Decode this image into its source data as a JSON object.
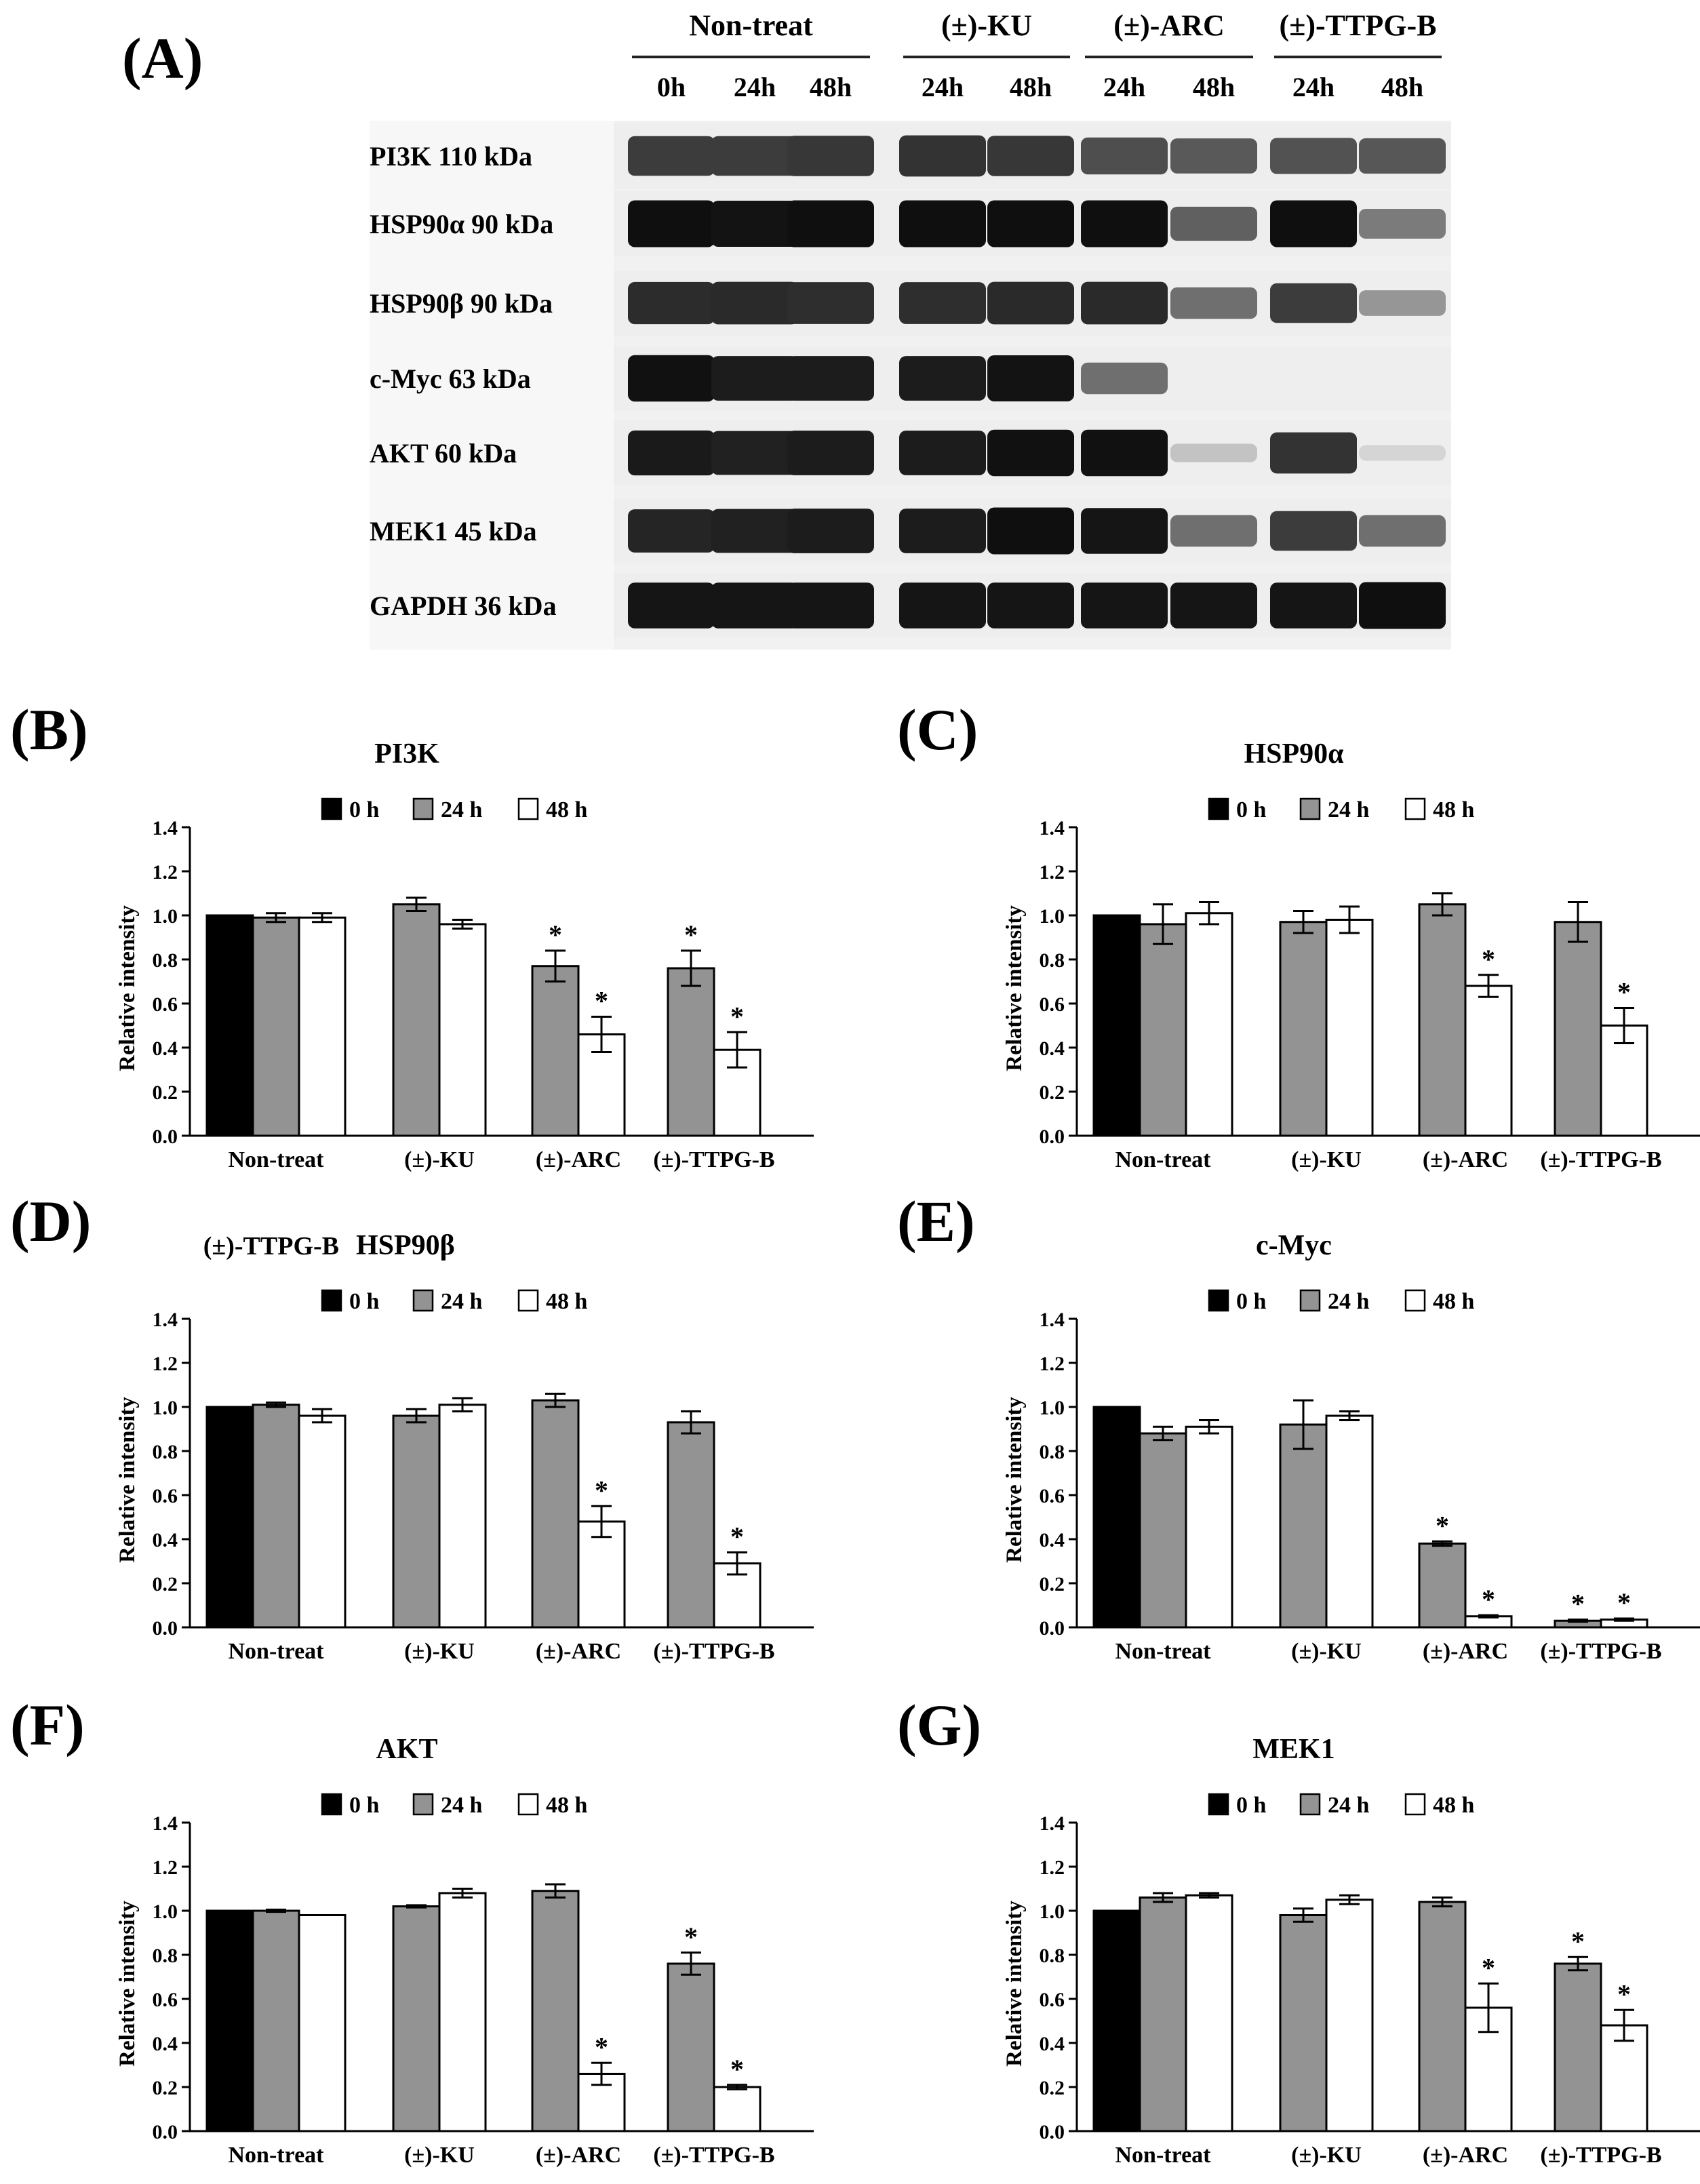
{
  "panel_a": {
    "label": "(A)",
    "groups": [
      {
        "name": "Non-treat",
        "times": [
          "0h",
          "24h",
          "48h"
        ]
      },
      {
        "name": "(±)-KU",
        "times": [
          "24h",
          "48h"
        ]
      },
      {
        "name": "(±)-ARC",
        "times": [
          "24h",
          "48h"
        ]
      },
      {
        "name": "(±)-TTPG-B",
        "times": [
          "24h",
          "48h"
        ]
      }
    ],
    "rows": [
      {
        "label": "PI3K 110 kDa",
        "intensity": [
          0.78,
          0.78,
          0.8,
          0.82,
          0.8,
          0.7,
          0.65,
          0.68,
          0.66
        ]
      },
      {
        "label": "HSP90α 90 kDa",
        "intensity": [
          0.98,
          0.96,
          0.98,
          0.98,
          0.98,
          0.98,
          0.62,
          0.98,
          0.5
        ]
      },
      {
        "label": "HSP90β 90 kDa",
        "intensity": [
          0.85,
          0.86,
          0.84,
          0.84,
          0.86,
          0.86,
          0.55,
          0.78,
          0.38
        ]
      },
      {
        "label": "c-Myc 63 kDa",
        "intensity": [
          0.97,
          0.92,
          0.92,
          0.92,
          0.96,
          0.55,
          0.0,
          0.0,
          0.0
        ]
      },
      {
        "label": "AKT 60 kDa",
        "intensity": [
          0.93,
          0.9,
          0.92,
          0.92,
          0.97,
          0.97,
          0.18,
          0.82,
          0.1
        ]
      },
      {
        "label": "MEK1 45 kDa",
        "intensity": [
          0.88,
          0.9,
          0.92,
          0.92,
          0.98,
          0.95,
          0.55,
          0.78,
          0.55
        ]
      },
      {
        "label": "GAPDH 36 kDa",
        "intensity": [
          0.95,
          0.95,
          0.95,
          0.95,
          0.95,
          0.95,
          0.95,
          0.95,
          0.98
        ]
      }
    ]
  },
  "colors": {
    "0h": "#000000",
    "24h": "#939393",
    "48h": "#ffffff"
  },
  "chart_data": [
    {
      "panel": "(B)",
      "type": "bar",
      "title": "PI3K",
      "ylabel": "Relative intensity",
      "ylim": [
        0,
        1.4
      ],
      "yticks": [
        "0.0",
        "0.2",
        "0.4",
        "0.6",
        "0.8",
        "1.0",
        "1.2",
        "1.4"
      ],
      "categories": [
        "Non-treat",
        "(±)-KU",
        "(±)-ARC",
        "(±)-TTPG-B"
      ],
      "series": [
        {
          "name": "0 h",
          "values": [
            1.0,
            null,
            null,
            null
          ],
          "errors": [
            0,
            null,
            null,
            null
          ]
        },
        {
          "name": "24 h",
          "values": [
            0.99,
            1.05,
            0.77,
            0.76
          ],
          "errors": [
            0.02,
            0.03,
            0.07,
            0.08
          ]
        },
        {
          "name": "48 h",
          "values": [
            0.99,
            0.96,
            0.46,
            0.39
          ],
          "errors": [
            0.02,
            0.02,
            0.08,
            0.08
          ]
        }
      ],
      "significance": {
        "24 h": [
          false,
          false,
          true,
          true
        ],
        "48 h": [
          false,
          false,
          true,
          true
        ]
      }
    },
    {
      "panel": "(C)",
      "type": "bar",
      "title": "HSP90α",
      "ylabel": "Relative intensity",
      "ylim": [
        0,
        1.4
      ],
      "yticks": [
        "0.0",
        "0.2",
        "0.4",
        "0.6",
        "0.8",
        "1.0",
        "1.2",
        "1.4"
      ],
      "categories": [
        "Non-treat",
        "(±)-KU",
        "(±)-ARC",
        "(±)-TTPG-B"
      ],
      "series": [
        {
          "name": "0 h",
          "values": [
            1.0,
            null,
            null,
            null
          ],
          "errors": [
            0,
            null,
            null,
            null
          ]
        },
        {
          "name": "24 h",
          "values": [
            0.96,
            0.97,
            1.05,
            0.97
          ],
          "errors": [
            0.09,
            0.05,
            0.05,
            0.09
          ]
        },
        {
          "name": "48 h",
          "values": [
            1.01,
            0.98,
            0.68,
            0.5
          ],
          "errors": [
            0.05,
            0.06,
            0.05,
            0.08
          ]
        }
      ],
      "significance": {
        "24 h": [
          false,
          false,
          false,
          false
        ],
        "48 h": [
          false,
          false,
          true,
          true
        ]
      }
    },
    {
      "panel": "(D)",
      "type": "bar",
      "title": "HSP90β",
      "title_prefix": "(±)-TTPG-B",
      "ylabel": "Relative intensity",
      "ylim": [
        0,
        1.4
      ],
      "yticks": [
        "0.0",
        "0.2",
        "0.4",
        "0.6",
        "0.8",
        "1.0",
        "1.2",
        "1.4"
      ],
      "categories": [
        "Non-treat",
        "(±)-KU",
        "(±)-ARC",
        "(±)-TTPG-B"
      ],
      "series": [
        {
          "name": "0 h",
          "values": [
            1.0,
            null,
            null,
            null
          ],
          "errors": [
            0,
            null,
            null,
            null
          ]
        },
        {
          "name": "24 h",
          "values": [
            1.01,
            0.96,
            1.03,
            0.93
          ],
          "errors": [
            0.01,
            0.03,
            0.03,
            0.05
          ]
        },
        {
          "name": "48 h",
          "values": [
            0.96,
            1.01,
            0.48,
            0.29
          ],
          "errors": [
            0.03,
            0.03,
            0.07,
            0.05
          ]
        }
      ],
      "significance": {
        "24 h": [
          false,
          false,
          false,
          false
        ],
        "48 h": [
          false,
          false,
          true,
          true
        ]
      }
    },
    {
      "panel": "(E)",
      "type": "bar",
      "title": "c-Myc",
      "ylabel": "Relative intensity",
      "ylim": [
        0,
        1.4
      ],
      "yticks": [
        "0.0",
        "0.2",
        "0.4",
        "0.6",
        "0.8",
        "1.0",
        "1.2",
        "1.4"
      ],
      "categories": [
        "Non-treat",
        "(±)-KU",
        "(±)-ARC",
        "(±)-TTPG-B"
      ],
      "series": [
        {
          "name": "0 h",
          "values": [
            1.0,
            null,
            null,
            null
          ],
          "errors": [
            0,
            null,
            null,
            null
          ]
        },
        {
          "name": "24 h",
          "values": [
            0.88,
            0.92,
            0.38,
            0.03
          ],
          "errors": [
            0.03,
            0.11,
            0.01,
            0.005
          ]
        },
        {
          "name": "48 h",
          "values": [
            0.91,
            0.96,
            0.05,
            0.035
          ],
          "errors": [
            0.03,
            0.02,
            0.005,
            0.005
          ]
        }
      ],
      "significance": {
        "24 h": [
          false,
          false,
          true,
          true
        ],
        "48 h": [
          false,
          false,
          true,
          true
        ]
      }
    },
    {
      "panel": "(F)",
      "type": "bar",
      "title": "AKT",
      "ylabel": "Relative intensity",
      "ylim": [
        0,
        1.4
      ],
      "yticks": [
        "0.0",
        "0.2",
        "0.4",
        "0.6",
        "0.8",
        "1.0",
        "1.2",
        "1.4"
      ],
      "categories": [
        "Non-treat",
        "(±)-KU",
        "(±)-ARC",
        "(±)-TTPG-B"
      ],
      "series": [
        {
          "name": "0 h",
          "values": [
            1.0,
            null,
            null,
            null
          ],
          "errors": [
            0,
            null,
            null,
            null
          ]
        },
        {
          "name": "24 h",
          "values": [
            1.0,
            1.02,
            1.09,
            0.76
          ],
          "errors": [
            0.005,
            0.005,
            0.03,
            0.05
          ]
        },
        {
          "name": "48 h",
          "values": [
            0.98,
            1.08,
            0.26,
            0.2
          ],
          "errors": [
            0.0,
            0.02,
            0.05,
            0.01
          ]
        }
      ],
      "significance": {
        "24 h": [
          false,
          false,
          false,
          true
        ],
        "48 h": [
          false,
          false,
          true,
          true
        ]
      }
    },
    {
      "panel": "(G)",
      "type": "bar",
      "title": "MEK1",
      "ylabel": "Relative intensity",
      "ylim": [
        0,
        1.4
      ],
      "yticks": [
        "0.0",
        "0.2",
        "0.4",
        "0.6",
        "0.8",
        "1.0",
        "1.2",
        "1.4"
      ],
      "categories": [
        "Non-treat",
        "(±)-KU",
        "(±)-ARC",
        "(±)-TTPG-B"
      ],
      "series": [
        {
          "name": "0 h",
          "values": [
            1.0,
            null,
            null,
            null
          ],
          "errors": [
            0,
            null,
            null,
            null
          ]
        },
        {
          "name": "24 h",
          "values": [
            1.06,
            0.98,
            1.04,
            0.76
          ],
          "errors": [
            0.02,
            0.03,
            0.02,
            0.03
          ]
        },
        {
          "name": "48 h",
          "values": [
            1.07,
            1.05,
            0.56,
            0.48
          ],
          "errors": [
            0.01,
            0.02,
            0.11,
            0.07
          ]
        }
      ],
      "significance": {
        "24 h": [
          false,
          false,
          false,
          true
        ],
        "48 h": [
          false,
          false,
          true,
          true
        ]
      }
    }
  ]
}
